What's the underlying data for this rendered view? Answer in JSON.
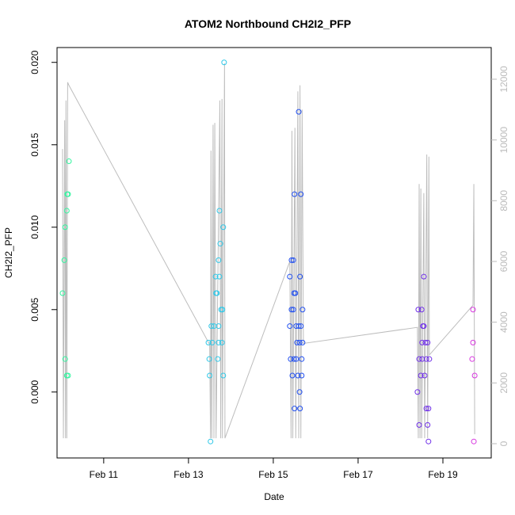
{
  "chart_data": {
    "type": "scatter",
    "title": "ATOM2 Northbound CH2I2_PFP",
    "xlabel": "Date",
    "ylabel": "CH2I2_PFP",
    "xlim": [
      9.9,
      20.14
    ],
    "xticks": [
      {
        "value": 11,
        "label": "Feb 11"
      },
      {
        "value": 13,
        "label": "Feb 13"
      },
      {
        "value": 15,
        "label": "Feb 15"
      },
      {
        "value": 17,
        "label": "Feb 17"
      },
      {
        "value": 19,
        "label": "Feb 19"
      }
    ],
    "ylim": [
      -0.004,
      0.0209
    ],
    "yticks": [
      {
        "value": 0,
        "label": "0.000"
      },
      {
        "value": 0.005,
        "label": "0.005"
      },
      {
        "value": 0.01,
        "label": "0.010"
      },
      {
        "value": 0.015,
        "label": "0.015"
      },
      {
        "value": 0.02,
        "label": "0.020"
      }
    ],
    "y2lim": [
      -470,
      13043
    ],
    "y2ticks": [
      0,
      2000,
      4000,
      6000,
      8000,
      10000,
      12000
    ],
    "series": [
      {
        "type": "line",
        "axis": "y2",
        "color": "#bdbdbd",
        "x": [
          10.03,
          10.05,
          10.08,
          10.1,
          10.11,
          10.13,
          10.15,
          10.18,
          13.5,
          13.52,
          13.53,
          13.55,
          13.58,
          13.6,
          13.62,
          13.65,
          13.74,
          13.76,
          13.79,
          13.8,
          13.85,
          13.86,
          15.39,
          15.42,
          15.44,
          15.46,
          15.51,
          15.53,
          15.58,
          15.6,
          15.63,
          15.65,
          15.68,
          15.71,
          18.4,
          18.42,
          18.44,
          18.46,
          18.48,
          18.5,
          18.55,
          18.57,
          18.62,
          18.64,
          18.67,
          18.68,
          19.71,
          19.73,
          19.75
        ],
        "values": [
          9700,
          180,
          10650,
          180,
          11300,
          180,
          11900,
          11800,
          3260,
          180,
          9650,
          180,
          10500,
          180,
          10560,
          180,
          11300,
          180,
          11350,
          180,
          12520,
          180,
          6000,
          180,
          10300,
          180,
          10400,
          180,
          11600,
          180,
          11800,
          180,
          11000,
          3300,
          3830,
          180,
          8550,
          180,
          8400,
          180,
          8250,
          180,
          9520,
          180,
          9450,
          2920,
          4560,
          8550,
          310
        ]
      },
      {
        "color": "#33f5a0",
        "x": [
          10.03,
          10.07,
          10.09,
          10.09,
          10.13,
          10.14,
          10.16,
          10.13,
          10.16,
          10.18
        ],
        "values": [
          0.006,
          0.008,
          0.002,
          0.01,
          0.011,
          0.012,
          0.012,
          0.001,
          0.001,
          0.014
        ]
      },
      {
        "color": "#30c8e8",
        "x": [
          13.5,
          13.52,
          13.47,
          13.49,
          13.54,
          13.56,
          13.6,
          13.64,
          13.65,
          13.67,
          13.69,
          13.71,
          13.73,
          13.73,
          13.75,
          13.77,
          13.79,
          13.8,
          13.82,
          13.82,
          13.84,
          13.71,
          13.71
        ],
        "values": [
          0.001,
          -0.003,
          0.003,
          0.002,
          0.004,
          0.003,
          0.004,
          0.007,
          0.006,
          0.006,
          0.002,
          0.008,
          0.007,
          0.011,
          0.009,
          0.005,
          0.003,
          0.005,
          0.01,
          0.001,
          0.02,
          0.004,
          0.003
        ]
      },
      {
        "color": "#2250f0",
        "x": [
          15.39,
          15.39,
          15.41,
          15.43,
          15.43,
          15.45,
          15.47,
          15.47,
          15.49,
          15.49,
          15.5,
          15.5,
          15.52,
          15.54,
          15.54,
          15.56,
          15.58,
          15.6,
          15.6,
          15.62,
          15.62,
          15.63,
          15.63,
          15.65,
          15.65,
          15.67,
          15.67,
          15.69,
          15.69
        ],
        "values": [
          0.004,
          0.007,
          0.002,
          0.008,
          0.005,
          0.001,
          0.008,
          0.005,
          0.006,
          0.002,
          -0.001,
          0.012,
          0.006,
          0.004,
          0.002,
          0.003,
          0.001,
          0.017,
          0.004,
          0.003,
          0.0,
          0.007,
          -0.001,
          0.012,
          0.004,
          0.002,
          0.001,
          0.005,
          0.003
        ]
      },
      {
        "color": "#7030e8",
        "x": [
          18.4,
          18.42,
          18.44,
          18.44,
          18.48,
          18.5,
          18.51,
          18.51,
          18.53,
          18.55,
          18.55,
          18.57,
          18.59,
          18.61,
          18.61,
          18.64,
          18.64,
          18.66,
          18.66,
          18.68
        ],
        "values": [
          0.0,
          0.005,
          -0.002,
          0.002,
          0.001,
          0.005,
          0.003,
          0.002,
          0.004,
          0.004,
          0.007,
          0.001,
          0.003,
          0.002,
          -0.001,
          -0.002,
          0.003,
          -0.003,
          -0.001,
          0.002
        ]
      },
      {
        "color": "#d838e0",
        "x": [
          19.71,
          19.71,
          19.69,
          19.75,
          19.73
        ],
        "values": [
          0.005,
          0.003,
          0.002,
          0.001,
          -0.003
        ]
      }
    ]
  }
}
